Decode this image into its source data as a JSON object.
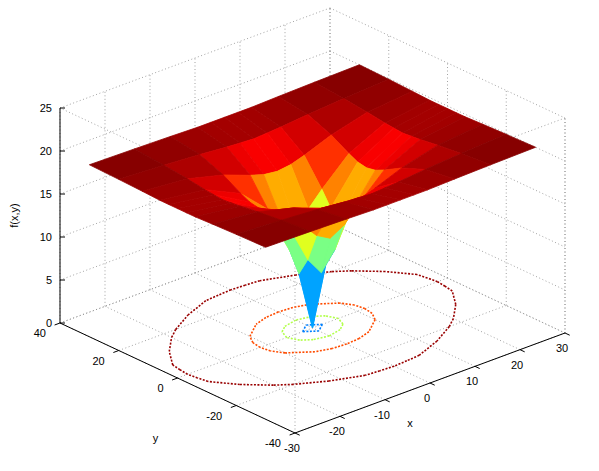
{
  "chart_data": {
    "type": "surface",
    "xlabel": "x",
    "ylabel": "y",
    "zlabel": "f(x,y)",
    "x": [
      -30,
      -20,
      -12,
      -6,
      -3,
      0,
      3,
      6,
      12,
      20,
      30
    ],
    "y": [
      -30,
      -20,
      -12,
      -6,
      -3,
      0,
      3,
      6,
      12,
      20,
      30
    ],
    "z": [
      [
        20.0,
        19.9,
        19.8,
        19.7,
        19.7,
        19.7,
        19.7,
        19.7,
        19.8,
        19.9,
        20.0
      ],
      [
        19.9,
        19.6,
        19.3,
        19.0,
        18.9,
        18.8,
        18.9,
        19.0,
        19.3,
        19.6,
        19.9
      ],
      [
        19.8,
        19.3,
        18.2,
        17.0,
        16.5,
        16.3,
        16.5,
        17.0,
        18.2,
        19.3,
        19.8
      ],
      [
        19.7,
        19.0,
        17.0,
        14.0,
        12.3,
        11.4,
        12.3,
        14.0,
        17.0,
        19.0,
        19.7
      ],
      [
        19.7,
        18.9,
        16.5,
        12.3,
        9.0,
        6.9,
        9.0,
        12.3,
        16.5,
        18.9,
        19.7
      ],
      [
        19.7,
        18.8,
        16.3,
        11.4,
        6.9,
        0,
        6.9,
        11.4,
        16.3,
        18.8,
        19.7
      ],
      [
        19.7,
        18.9,
        16.5,
        12.3,
        9.0,
        6.9,
        9.0,
        12.3,
        16.5,
        18.9,
        19.7
      ],
      [
        19.7,
        19.0,
        17.0,
        14.0,
        12.3,
        11.4,
        12.3,
        14.0,
        17.0,
        19.0,
        19.7
      ],
      [
        19.8,
        19.3,
        18.2,
        17.0,
        16.5,
        16.3,
        16.5,
        17.0,
        18.2,
        19.3,
        19.8
      ],
      [
        19.9,
        19.6,
        19.3,
        19.0,
        18.9,
        18.8,
        18.9,
        19.0,
        19.3,
        19.6,
        19.9
      ],
      [
        20.0,
        19.9,
        19.8,
        19.7,
        19.7,
        19.7,
        19.7,
        19.7,
        19.8,
        19.9,
        20.0
      ]
    ],
    "xlim": [
      -30,
      30
    ],
    "ylim": [
      -40,
      40
    ],
    "zlim": [
      0,
      25
    ],
    "xticks": [
      -30,
      -20,
      -10,
      0,
      10,
      20,
      30
    ],
    "yticks": [
      -40,
      -20,
      0,
      20,
      40
    ],
    "zticks": [
      0,
      5,
      10,
      15,
      20,
      25
    ],
    "grid": true,
    "contour_levels": [
      5,
      11,
      16,
      19.5
    ]
  }
}
